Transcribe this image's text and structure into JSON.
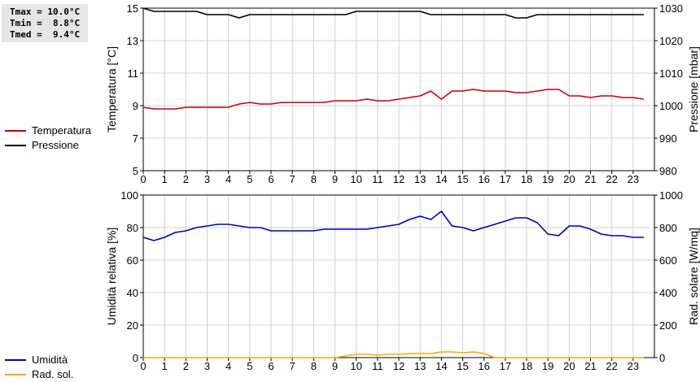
{
  "stats": {
    "tmax": "Tmax = 10.0°C",
    "tmin": "Tmin =  8.8°C",
    "tmed": "Tmed =  9.4°C"
  },
  "legend_top": [
    {
      "label": "Temperatura",
      "color": "#cc0000"
    },
    {
      "label": "Pressione",
      "color": "#000000"
    }
  ],
  "legend_bottom": [
    {
      "label": "Umidità",
      "color": "#0000bb"
    },
    {
      "label": "Rad. sol.",
      "color": "#ffa500"
    }
  ],
  "chart_data": [
    {
      "type": "line",
      "ylabel_left": "Temperatura [°C]",
      "ylabel_right": "Pressione [mbar]",
      "x_ticks": [
        0,
        1,
        2,
        3,
        4,
        5,
        6,
        7,
        8,
        9,
        10,
        11,
        12,
        13,
        14,
        15,
        16,
        17,
        18,
        19,
        20,
        21,
        22,
        23
      ],
      "ylim_left": [
        5,
        15
      ],
      "yticks_left": [
        5,
        7,
        9,
        11,
        13,
        15
      ],
      "ylim_right": [
        980,
        1030
      ],
      "yticks_right": [
        980,
        990,
        1000,
        1010,
        1020,
        1030
      ],
      "grid": true,
      "series": [
        {
          "name": "Temperatura",
          "axis": "left",
          "color": "#cc0000",
          "x": [
            0,
            0.5,
            1,
            1.5,
            2,
            2.5,
            3,
            3.5,
            4,
            4.5,
            5,
            5.5,
            6,
            6.5,
            7,
            7.5,
            8,
            8.5,
            9,
            9.5,
            10,
            10.5,
            11,
            11.5,
            12,
            12.5,
            13,
            13.5,
            14,
            14.5,
            15,
            15.5,
            16,
            16.5,
            17,
            17.5,
            18,
            18.5,
            19,
            19.5,
            20,
            20.5,
            21,
            21.5,
            22,
            22.5,
            23,
            23.5
          ],
          "values": [
            8.9,
            8.8,
            8.8,
            8.8,
            8.9,
            8.9,
            8.9,
            8.9,
            8.9,
            9.1,
            9.2,
            9.1,
            9.1,
            9.2,
            9.2,
            9.2,
            9.2,
            9.2,
            9.3,
            9.3,
            9.3,
            9.4,
            9.3,
            9.3,
            9.4,
            9.5,
            9.6,
            9.9,
            9.4,
            9.9,
            9.9,
            10.0,
            9.9,
            9.9,
            9.9,
            9.8,
            9.8,
            9.9,
            10.0,
            10.0,
            9.6,
            9.6,
            9.5,
            9.6,
            9.6,
            9.5,
            9.5,
            9.4
          ]
        },
        {
          "name": "Pressione",
          "axis": "right",
          "color": "#000000",
          "x": [
            0,
            0.5,
            1,
            1.5,
            2,
            2.5,
            3,
            3.5,
            4,
            4.5,
            5,
            5.5,
            6,
            6.5,
            7,
            7.5,
            8,
            8.5,
            9,
            9.5,
            10,
            10.5,
            11,
            11.5,
            12,
            12.5,
            13,
            13.5,
            14,
            14.5,
            15,
            15.5,
            16,
            16.5,
            17,
            17.5,
            18,
            18.5,
            19,
            19.5,
            20,
            20.5,
            21,
            21.5,
            22,
            22.5,
            23,
            23.5
          ],
          "values": [
            1030,
            1029,
            1029,
            1029,
            1029,
            1029,
            1028,
            1028,
            1028,
            1027,
            1028,
            1028,
            1028,
            1028,
            1028,
            1028,
            1028,
            1028,
            1028,
            1028,
            1029,
            1029,
            1029,
            1029,
            1029,
            1029,
            1029,
            1028,
            1028,
            1028,
            1028,
            1028,
            1028,
            1028,
            1028,
            1027,
            1027,
            1028,
            1028,
            1028,
            1028,
            1028,
            1028,
            1028,
            1028,
            1028,
            1028,
            1028
          ]
        }
      ]
    },
    {
      "type": "line",
      "ylabel_left": "Umidità relativa [%]",
      "ylabel_right": "Rad. solare [W/mq]",
      "x_ticks": [
        0,
        1,
        2,
        3,
        4,
        5,
        6,
        7,
        8,
        9,
        10,
        11,
        12,
        13,
        14,
        15,
        16,
        17,
        18,
        19,
        20,
        21,
        22,
        23
      ],
      "ylim_left": [
        0,
        100
      ],
      "yticks_left": [
        0,
        20,
        40,
        60,
        80,
        100
      ],
      "ylim_right": [
        0,
        1000
      ],
      "yticks_right": [
        0,
        200,
        400,
        600,
        800,
        1000
      ],
      "grid": true,
      "series": [
        {
          "name": "Umidità",
          "axis": "left",
          "color": "#0000bb",
          "x": [
            0,
            0.5,
            1,
            1.5,
            2,
            2.5,
            3,
            3.5,
            4,
            4.5,
            5,
            5.5,
            6,
            6.5,
            7,
            7.5,
            8,
            8.5,
            9,
            9.5,
            10,
            10.5,
            11,
            11.5,
            12,
            12.5,
            13,
            13.5,
            14,
            14.5,
            15,
            15.5,
            16,
            16.5,
            17,
            17.5,
            18,
            18.5,
            19,
            19.5,
            20,
            20.5,
            21,
            21.5,
            22,
            22.5,
            23,
            23.5
          ],
          "values": [
            74,
            72,
            74,
            77,
            78,
            80,
            81,
            82,
            82,
            81,
            80,
            80,
            78,
            78,
            78,
            78,
            78,
            79,
            79,
            79,
            79,
            79,
            80,
            81,
            82,
            85,
            87,
            85,
            90,
            81,
            80,
            78,
            80,
            82,
            84,
            86,
            86,
            83,
            76,
            75,
            81,
            81,
            79,
            76,
            75,
            75,
            74,
            74
          ]
        },
        {
          "name": "Rad. sol.",
          "axis": "right",
          "color": "#ffa500",
          "x": [
            0,
            0.5,
            1,
            1.5,
            2,
            2.5,
            3,
            3.5,
            4,
            4.5,
            5,
            5.5,
            6,
            6.5,
            7,
            7.5,
            8,
            8.5,
            9,
            9.5,
            10,
            10.5,
            11,
            11.5,
            12,
            12.5,
            13,
            13.5,
            14,
            14.5,
            15,
            15.5,
            16,
            16.5,
            17,
            17.5,
            18,
            18.5,
            19,
            19.5,
            20,
            20.5,
            21,
            21.5,
            22,
            22.5,
            23,
            23.5
          ],
          "values": [
            0,
            0,
            0,
            0,
            0,
            0,
            0,
            0,
            0,
            0,
            0,
            0,
            0,
            0,
            0,
            0,
            0,
            0,
            0,
            10,
            20,
            20,
            15,
            20,
            20,
            25,
            25,
            25,
            35,
            35,
            30,
            35,
            25,
            0,
            0,
            0,
            0,
            0,
            0,
            0,
            0,
            0,
            0,
            0,
            0,
            0,
            0,
            0
          ]
        }
      ]
    }
  ]
}
